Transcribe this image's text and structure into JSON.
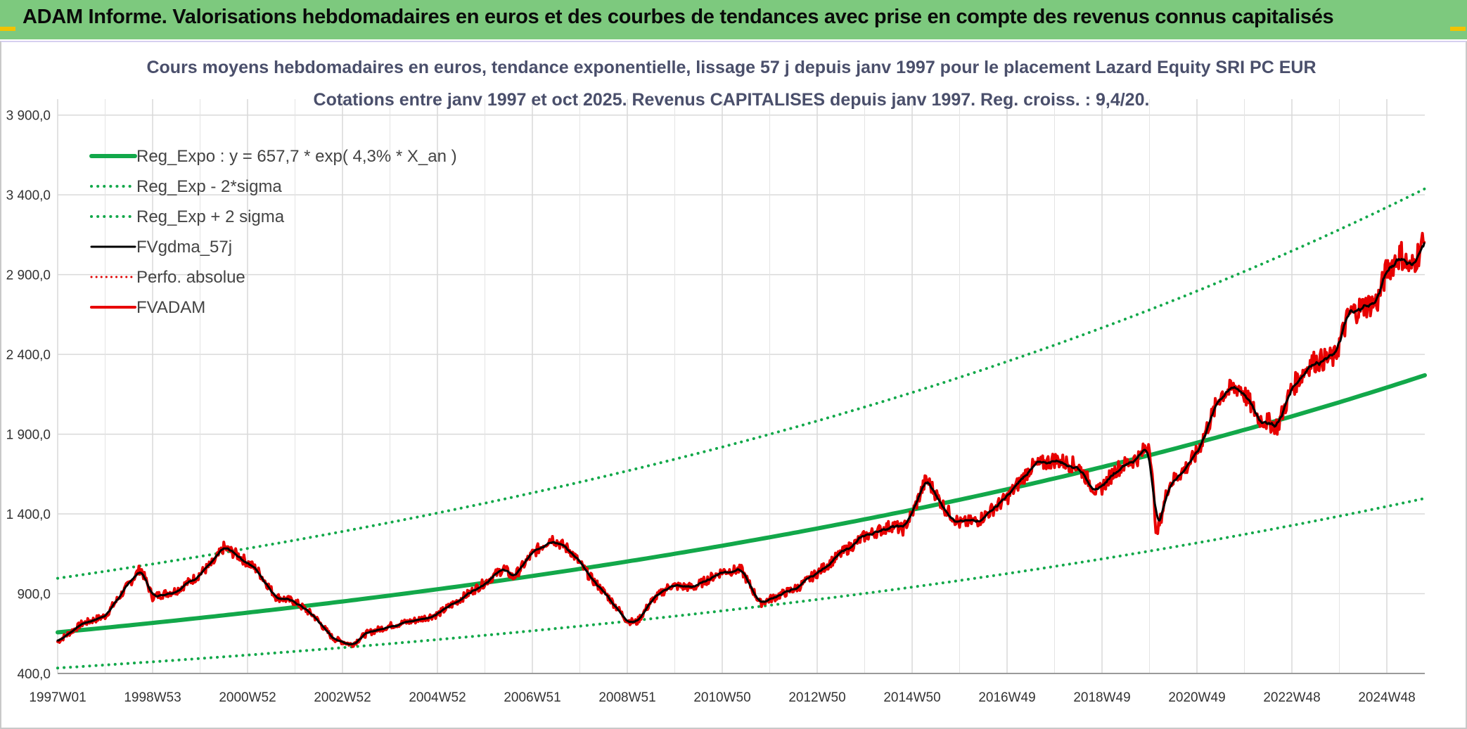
{
  "banner": {
    "title": "ADAM Informe. Valorisations hebdomadaires en euros et des courbes de tendances avec prise en compte des revenus connus capitalisés",
    "background": "#7dc97e"
  },
  "chart_data": {
    "type": "line",
    "title": "Cours moyens hebdomadaires en euros, tendance exponentielle, lissage 57 j depuis janv 1997 pour le placement Lazard Equity SRI PC EUR",
    "subtitle": "Cotations entre janv 1997 et oct 2025. Revenus CAPITALISES depuis janv 1997. Reg. croiss. : 9,4/20.",
    "xlabel": "",
    "ylabel": "",
    "x_range": [
      1997.0,
      2025.8
    ],
    "ylim": [
      400,
      4000
    ],
    "grid": true,
    "legend_position": "top-left",
    "yticks": [
      {
        "value": 400,
        "label": "400,0"
      },
      {
        "value": 900,
        "label": "900,0"
      },
      {
        "value": 1400,
        "label": "1 400,0"
      },
      {
        "value": 1900,
        "label": "1 900,0"
      },
      {
        "value": 2400,
        "label": "2 400,0"
      },
      {
        "value": 2900,
        "label": "2 900,0"
      },
      {
        "value": 3400,
        "label": "3 400,0"
      },
      {
        "value": 3900,
        "label": "3 900,0"
      }
    ],
    "xticks": [
      {
        "value": 1997.0,
        "label": "1997W01"
      },
      {
        "value": 1999.0,
        "label": "1998W53"
      },
      {
        "value": 2001.0,
        "label": "2000W52"
      },
      {
        "value": 2003.0,
        "label": "2002W52"
      },
      {
        "value": 2005.0,
        "label": "2004W52"
      },
      {
        "value": 2007.0,
        "label": "2006W51"
      },
      {
        "value": 2009.0,
        "label": "2008W51"
      },
      {
        "value": 2011.0,
        "label": "2010W50"
      },
      {
        "value": 2013.0,
        "label": "2012W50"
      },
      {
        "value": 2015.0,
        "label": "2014W50"
      },
      {
        "value": 2017.0,
        "label": "2016W49"
      },
      {
        "value": 2019.0,
        "label": "2018W49"
      },
      {
        "value": 2021.0,
        "label": "2020W49"
      },
      {
        "value": 2023.0,
        "label": "2022W48"
      },
      {
        "value": 2025.0,
        "label": "2024W48"
      }
    ],
    "regression": {
      "a": 657.7,
      "b": 0.043,
      "sigma_factor": 0.66
    },
    "series": [
      {
        "name": "Reg_Expo : y = 657,7 * exp( 4,3% *  X_an )",
        "kind": "reg",
        "color": "#12a84a",
        "style": "solid",
        "width": 6
      },
      {
        "name": "Reg_Exp - 2*sigma",
        "kind": "reg_low",
        "color": "#12a84a",
        "style": "dotted",
        "width": 4
      },
      {
        "name": "Reg_Exp + 2 sigma",
        "kind": "reg_high",
        "color": "#12a84a",
        "style": "dotted",
        "width": 4
      },
      {
        "name": "FVgdma_57j",
        "kind": "smooth",
        "color": "#000000",
        "style": "solid",
        "width": 3
      },
      {
        "name": "Perfo. absolue",
        "kind": "none",
        "color": "#e00000",
        "style": "dotted",
        "width": 3
      },
      {
        "name": "FVADAM",
        "kind": "price",
        "color": "#e80000",
        "style": "solid",
        "width": 4
      }
    ],
    "price_keypoints": [
      [
        1997.0,
        600
      ],
      [
        1997.5,
        710
      ],
      [
        1998.0,
        760
      ],
      [
        1998.5,
        960
      ],
      [
        1998.75,
        1060
      ],
      [
        1999.0,
        880
      ],
      [
        1999.5,
        920
      ],
      [
        1999.9,
        1000
      ],
      [
        2000.3,
        1100
      ],
      [
        2000.5,
        1190
      ],
      [
        2000.8,
        1140
      ],
      [
        2001.2,
        1050
      ],
      [
        2001.6,
        880
      ],
      [
        2002.0,
        850
      ],
      [
        2002.4,
        760
      ],
      [
        2002.8,
        620
      ],
      [
        2003.2,
        580
      ],
      [
        2003.5,
        650
      ],
      [
        2004.0,
        700
      ],
      [
        2004.5,
        730
      ],
      [
        2005.0,
        770
      ],
      [
        2005.5,
        870
      ],
      [
        2006.0,
        970
      ],
      [
        2006.4,
        1060
      ],
      [
        2006.6,
        1000
      ],
      [
        2007.0,
        1150
      ],
      [
        2007.4,
        1250
      ],
      [
        2007.8,
        1170
      ],
      [
        2008.2,
        1010
      ],
      [
        2008.6,
        880
      ],
      [
        2009.0,
        730
      ],
      [
        2009.2,
        720
      ],
      [
        2009.5,
        850
      ],
      [
        2009.9,
        950
      ],
      [
        2010.4,
        940
      ],
      [
        2011.0,
        1040
      ],
      [
        2011.4,
        1050
      ],
      [
        2011.8,
        840
      ],
      [
        2012.2,
        890
      ],
      [
        2012.6,
        940
      ],
      [
        2013.0,
        1030
      ],
      [
        2013.5,
        1150
      ],
      [
        2014.0,
        1260
      ],
      [
        2014.6,
        1330
      ],
      [
        2014.8,
        1300
      ],
      [
        2015.0,
        1400
      ],
      [
        2015.3,
        1620
      ],
      [
        2015.7,
        1430
      ],
      [
        2016.0,
        1340
      ],
      [
        2016.4,
        1360
      ],
      [
        2017.0,
        1500
      ],
      [
        2017.5,
        1690
      ],
      [
        2018.0,
        1740
      ],
      [
        2018.5,
        1700
      ],
      [
        2018.9,
        1530
      ],
      [
        2019.3,
        1680
      ],
      [
        2019.8,
        1760
      ],
      [
        2020.0,
        1850
      ],
      [
        2020.15,
        1260
      ],
      [
        2020.4,
        1580
      ],
      [
        2020.8,
        1700
      ],
      [
        2021.0,
        1780
      ],
      [
        2021.5,
        2150
      ],
      [
        2021.9,
        2200
      ],
      [
        2022.3,
        2000
      ],
      [
        2022.7,
        1950
      ],
      [
        2023.0,
        2190
      ],
      [
        2023.4,
        2350
      ],
      [
        2023.9,
        2380
      ],
      [
        2024.2,
        2650
      ],
      [
        2024.5,
        2700
      ],
      [
        2024.8,
        2730
      ],
      [
        2025.0,
        2930
      ],
      [
        2025.3,
        3030
      ],
      [
        2025.5,
        2930
      ],
      [
        2025.75,
        3090
      ]
    ]
  }
}
